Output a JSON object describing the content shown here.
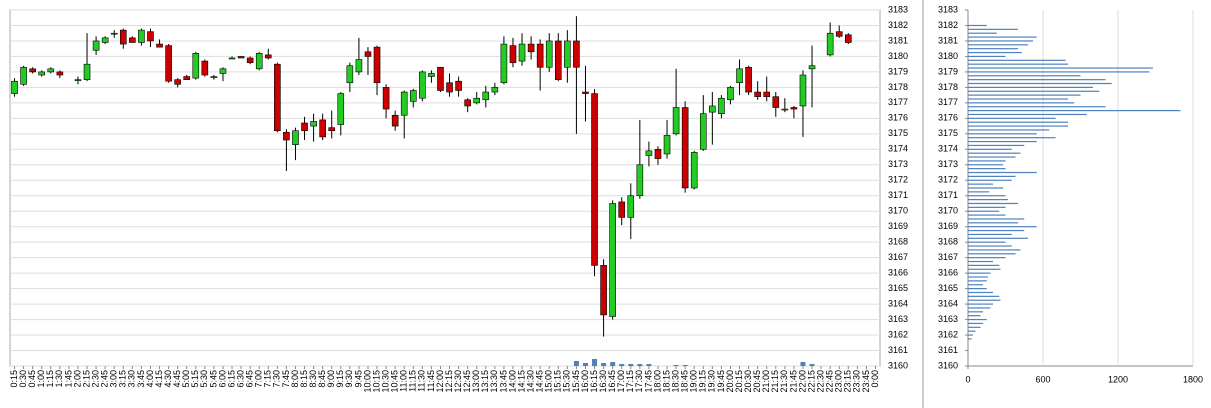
{
  "chart_data": [
    {
      "type": "candlestick",
      "categories": [
        "0:15",
        "0:30",
        "0:45",
        "1:00",
        "1:15",
        "1:30",
        "1:45",
        "2:00",
        "2:15",
        "2:30",
        "2:45",
        "3:00",
        "3:15",
        "3:30",
        "3:45",
        "4:00",
        "4:15",
        "4:30",
        "4:45",
        "5:00",
        "5:15",
        "5:30",
        "5:45",
        "6:00",
        "6:15",
        "6:30",
        "6:45",
        "7:00",
        "7:15",
        "7:30",
        "7:45",
        "8:00",
        "8:15",
        "8:30",
        "8:45",
        "9:00",
        "9:15",
        "9:30",
        "9:45",
        "10:00",
        "10:15",
        "10:30",
        "10:45",
        "11:00",
        "11:15",
        "11:30",
        "11:45",
        "12:00",
        "12:15",
        "12:30",
        "12:45",
        "13:00",
        "13:15",
        "13:30",
        "13:45",
        "14:00",
        "14:15",
        "14:30",
        "14:45",
        "15:00",
        "15:15",
        "15:30",
        "15:45",
        "16:00",
        "16:15",
        "16:30",
        "16:45",
        "17:00",
        "17:15",
        "17:30",
        "17:45",
        "18:00",
        "18:15",
        "18:30",
        "18:45",
        "19:00",
        "19:15",
        "19:30",
        "19:45",
        "20:00",
        "20:15",
        "20:30",
        "20:45",
        "21:00",
        "21:15",
        "21:30",
        "21:45",
        "22:00",
        "22:15",
        "22:30",
        "22:45",
        "23:00",
        "23:15",
        "23:30",
        "23:45",
        "0:00"
      ],
      "open": [
        3177.6,
        3178.2,
        3179.2,
        3178.8,
        3179.0,
        3179.0,
        null,
        3178.5,
        3178.5,
        3180.4,
        3180.9,
        3181.5,
        3181.7,
        3181.2,
        3180.9,
        3181.6,
        3180.8,
        3180.7,
        3178.5,
        3178.7,
        3178.6,
        3179.7,
        3178.7,
        3178.9,
        3179.9,
        3180.0,
        3179.9,
        3179.2,
        3180.1,
        3179.5,
        3175.1,
        3174.3,
        3175.7,
        3175.5,
        3175.9,
        3175.4,
        3175.6,
        3178.3,
        3179.0,
        3180.3,
        3180.6,
        3178.0,
        3176.2,
        3176.2,
        3177.1,
        3177.3,
        3178.7,
        3179.3,
        3178.3,
        3178.4,
        3177.2,
        3177.0,
        3177.2,
        3177.7,
        3178.3,
        3180.7,
        3179.7,
        3180.8,
        3180.8,
        3179.3,
        3181.0,
        3179.3,
        3181.0,
        3177.7,
        3177.6,
        3166.5,
        3163.2,
        3170.6,
        3169.6,
        3171.0,
        3173.6,
        3174.0,
        3173.7,
        3175.0,
        3176.7,
        3171.5,
        3174.0,
        3176.4,
        3176.3,
        3177.2,
        3178.3,
        3179.3,
        3177.7,
        3177.7,
        3177.4,
        3176.6,
        3176.7,
        3176.8,
        3179.2,
        null,
        3180.1,
        3181.6,
        3181.4,
        null,
        null,
        null
      ],
      "high": [
        3178.6,
        3179.4,
        3179.3,
        3179.1,
        3179.3,
        3179.1,
        null,
        3178.7,
        3181.5,
        3181.3,
        3181.3,
        3181.7,
        3181.8,
        3181.3,
        3181.8,
        3181.8,
        3181.1,
        3180.8,
        3178.6,
        3178.8,
        3180.3,
        3179.8,
        3178.8,
        3179.3,
        3180.0,
        3180.0,
        3180.0,
        3180.3,
        3180.5,
        3179.6,
        3175.3,
        3175.4,
        3176.1,
        3176.3,
        3176.3,
        3176.5,
        3177.7,
        3179.6,
        3181.2,
        3180.6,
        3180.7,
        3178.2,
        3176.5,
        3177.8,
        3177.9,
        3179.1,
        3179.1,
        3179.3,
        3178.9,
        3178.7,
        3177.3,
        3177.7,
        3178.1,
        3178.3,
        3181.3,
        3181.2,
        3181.5,
        3181.3,
        3181.1,
        3181.5,
        3181.5,
        3181.7,
        3182.6,
        3179.4,
        3177.9,
        3166.9,
        3170.7,
        3170.9,
        3171.8,
        3175.9,
        3174.5,
        3174.2,
        3175.9,
        3179.2,
        3177.1,
        3173.9,
        3177.5,
        3177.7,
        3177.5,
        3178.1,
        3179.8,
        3179.4,
        3178.4,
        3178.7,
        3177.7,
        3177.3,
        3176.8,
        3179.1,
        3180.7,
        null,
        3182.2,
        3182.0,
        3181.5,
        null,
        null,
        null
      ],
      "low": [
        3177.4,
        3178.1,
        3178.9,
        3178.7,
        3178.9,
        3178.6,
        null,
        3178.2,
        3178.4,
        3180.1,
        3180.8,
        3181.2,
        3180.5,
        3180.9,
        3180.7,
        3180.6,
        3180.6,
        3178.3,
        3178.0,
        3178.5,
        3178.5,
        3178.7,
        3178.5,
        3178.4,
        3179.9,
        3179.9,
        3179.5,
        3179.1,
        3179.8,
        3175.1,
        3172.6,
        3173.3,
        3174.6,
        3174.5,
        3174.6,
        3174.7,
        3174.9,
        3177.7,
        3178.8,
        3178.8,
        3177.5,
        3176.0,
        3175.2,
        3174.7,
        3176.7,
        3177.1,
        3178.3,
        3177.7,
        3177.4,
        3177.4,
        3176.4,
        3176.9,
        3176.7,
        3177.5,
        3178.2,
        3179.3,
        3179.4,
        3179.8,
        3177.8,
        3179.0,
        3178.4,
        3178.3,
        3175.0,
        3175.8,
        3165.8,
        3161.9,
        3163.0,
        3169.1,
        3168.2,
        3170.8,
        3172.9,
        3173.0,
        3173.4,
        3174.9,
        3171.2,
        3171.4,
        3173.9,
        3174.3,
        3176.0,
        3176.9,
        3177.5,
        3177.5,
        3177.2,
        3177.1,
        3176.1,
        3176.4,
        3176.0,
        3174.8,
        3176.7,
        null,
        3180.0,
        3181.2,
        3180.8,
        null,
        null,
        null
      ],
      "close": [
        3178.4,
        3179.3,
        3179.0,
        3179.0,
        3179.2,
        3178.8,
        null,
        3178.5,
        3179.5,
        3181.0,
        3181.2,
        3181.5,
        3180.8,
        3180.9,
        3181.7,
        3181.0,
        3180.6,
        3178.4,
        3178.2,
        3178.5,
        3180.2,
        3178.8,
        3178.7,
        3179.2,
        3179.9,
        3179.9,
        3179.6,
        3180.2,
        3179.9,
        3175.2,
        3174.6,
        3175.2,
        3175.2,
        3175.8,
        3174.8,
        3175.2,
        3177.6,
        3179.4,
        3179.8,
        3180.0,
        3178.3,
        3176.6,
        3175.5,
        3177.7,
        3177.8,
        3179.0,
        3178.9,
        3177.8,
        3177.7,
        3177.8,
        3176.8,
        3177.3,
        3177.7,
        3178.0,
        3180.8,
        3179.6,
        3180.8,
        3180.3,
        3179.3,
        3181.0,
        3178.5,
        3181.0,
        3179.3,
        3177.6,
        3166.5,
        3163.3,
        3170.5,
        3169.6,
        3171.0,
        3173.0,
        3173.9,
        3173.4,
        3174.9,
        3176.7,
        3171.5,
        3173.8,
        3176.3,
        3176.8,
        3177.3,
        3178.0,
        3179.2,
        3177.7,
        3177.4,
        3177.4,
        3176.7,
        3176.6,
        3176.6,
        3178.8,
        3179.4,
        null,
        3181.5,
        3181.3,
        3180.9,
        null,
        null,
        null
      ],
      "volume": [
        null,
        null,
        null,
        null,
        null,
        null,
        null,
        null,
        null,
        null,
        null,
        null,
        null,
        null,
        null,
        null,
        null,
        null,
        null,
        null,
        null,
        null,
        null,
        null,
        null,
        null,
        null,
        null,
        null,
        null,
        null,
        null,
        null,
        null,
        null,
        null,
        null,
        null,
        null,
        null,
        null,
        null,
        null,
        null,
        null,
        null,
        null,
        null,
        null,
        null,
        null,
        null,
        null,
        null,
        null,
        null,
        null,
        null,
        null,
        null,
        null,
        null,
        5,
        3,
        7,
        3,
        4,
        2,
        2,
        2,
        2,
        null,
        null,
        1,
        1,
        null,
        null,
        null,
        null,
        null,
        null,
        null,
        null,
        null,
        null,
        null,
        null,
        4,
        2,
        null,
        null,
        null,
        null,
        null,
        null,
        null
      ],
      "up_color": "#22cc22",
      "down_color": "#cc0000",
      "volume_color": "#4f81bd",
      "ylim": [
        3160,
        3183
      ],
      "yticks": [
        3160,
        3161,
        3162,
        3163,
        3164,
        3165,
        3166,
        3167,
        3168,
        3169,
        3170,
        3171,
        3172,
        3173,
        3174,
        3175,
        3176,
        3177,
        3178,
        3179,
        3180,
        3181,
        3182,
        3183
      ],
      "grid": true
    },
    {
      "type": "barh",
      "y": [
        3182.0,
        3181.75,
        3181.5,
        3181.25,
        3181.0,
        3180.75,
        3180.5,
        3180.25,
        3180.0,
        3179.75,
        3179.5,
        3179.25,
        3179.0,
        3178.75,
        3178.5,
        3178.25,
        3178.0,
        3177.75,
        3177.5,
        3177.25,
        3177.0,
        3176.75,
        3176.5,
        3176.25,
        3176.0,
        3175.75,
        3175.5,
        3175.25,
        3175.0,
        3174.75,
        3174.5,
        3174.25,
        3174.0,
        3173.75,
        3173.5,
        3173.25,
        3173.0,
        3172.75,
        3172.5,
        3172.25,
        3172.0,
        3171.75,
        3171.5,
        3171.25,
        3171.0,
        3170.75,
        3170.5,
        3170.25,
        3170.0,
        3169.75,
        3169.5,
        3169.25,
        3169.0,
        3168.75,
        3168.5,
        3168.25,
        3168.0,
        3167.75,
        3167.5,
        3167.25,
        3167.0,
        3166.75,
        3166.5,
        3166.25,
        3166.0,
        3165.75,
        3165.5,
        3165.25,
        3165.0,
        3164.75,
        3164.5,
        3164.25,
        3164.0,
        3163.75,
        3163.5,
        3163.25,
        3163.0,
        3162.75,
        3162.5,
        3162.25,
        3162.0,
        3161.75
      ],
      "values": [
        150,
        400,
        230,
        550,
        520,
        480,
        400,
        430,
        300,
        780,
        800,
        1480,
        1450,
        900,
        1100,
        1150,
        1000,
        1050,
        900,
        800,
        850,
        1100,
        1700,
        950,
        700,
        800,
        800,
        650,
        550,
        700,
        550,
        450,
        350,
        420,
        380,
        300,
        280,
        300,
        550,
        380,
        350,
        200,
        280,
        170,
        300,
        320,
        400,
        300,
        250,
        300,
        450,
        400,
        550,
        450,
        350,
        480,
        300,
        350,
        420,
        380,
        300,
        200,
        250,
        260,
        180,
        160,
        150,
        120,
        150,
        200,
        250,
        260,
        200,
        180,
        120,
        100,
        150,
        120,
        100,
        60,
        40,
        30
      ],
      "color": "#4f81bd",
      "xlim": [
        0,
        1800
      ],
      "xticks": [
        0,
        600,
        1200,
        1800
      ],
      "ylim": [
        3160,
        3183
      ],
      "yticks": [
        3160,
        3161,
        3162,
        3163,
        3164,
        3165,
        3166,
        3167,
        3168,
        3169,
        3170,
        3171,
        3172,
        3173,
        3174,
        3175,
        3176,
        3177,
        3178,
        3179,
        3180,
        3181,
        3182,
        3183
      ],
      "grid": true
    }
  ]
}
